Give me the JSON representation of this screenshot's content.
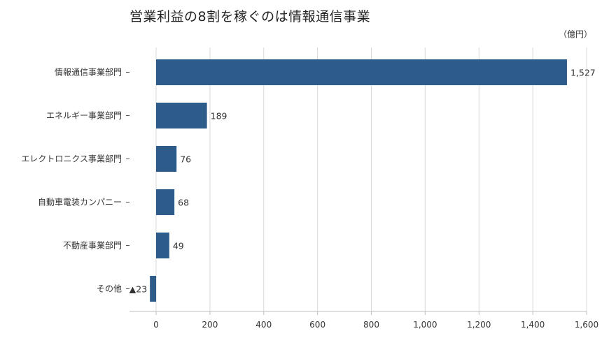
{
  "title": "営業利益の8割を稼ぐのは情報通信事業",
  "unit": "（億円）",
  "colors": {
    "bar": "#2e5c8a",
    "grid": "#d9d9d9",
    "axis": "#bfbfbf",
    "text": "#333333"
  },
  "chart_data": {
    "type": "bar",
    "orientation": "horizontal",
    "categories": [
      "情報通信事業部門",
      "エネルギー事業部門",
      "エレクトロニクス事業部門",
      "自動車電装カンパニー",
      "不動産事業部門",
      "その他"
    ],
    "values": [
      1527,
      189,
      76,
      68,
      49,
      -23
    ],
    "data_labels": [
      "1,527",
      "189",
      "76",
      "68",
      "49",
      "▲23"
    ],
    "xlim": [
      -100,
      1600
    ],
    "xticks": [
      0,
      200,
      400,
      600,
      800,
      1000,
      1200,
      1400,
      1600
    ],
    "xtick_labels": [
      "0",
      "200",
      "400",
      "600",
      "800",
      "1,000",
      "1,200",
      "1,400",
      "1,600"
    ],
    "grid": true,
    "xlabel": "",
    "ylabel": ""
  }
}
